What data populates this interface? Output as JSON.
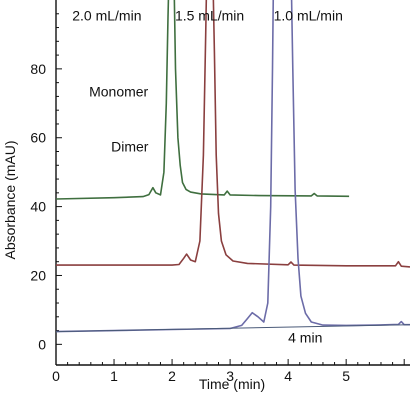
{
  "chart_data": {
    "type": "line",
    "title": "",
    "xlabel": "Time (min)",
    "ylabel": "Absorbance (mAU)",
    "xlim": [
      0,
      6.1
    ],
    "ylim": [
      -6,
      100
    ],
    "x_ticks": [
      0,
      1,
      2,
      3,
      4,
      5
    ],
    "y_ticks": [
      0,
      20,
      40,
      60,
      80
    ],
    "grid": false,
    "legend": "none",
    "series": [
      {
        "name": "2.0 mL/min",
        "color": "#3f6f3f",
        "points": [
          [
            0,
            42.2
          ],
          [
            1.0,
            42.6
          ],
          [
            1.5,
            42.9
          ],
          [
            1.6,
            43.5
          ],
          [
            1.67,
            45.5
          ],
          [
            1.72,
            44.0
          ],
          [
            1.8,
            43.4
          ],
          [
            1.86,
            50
          ],
          [
            1.9,
            70
          ],
          [
            1.93,
            95
          ],
          [
            1.95,
            110
          ],
          [
            2.03,
            110
          ],
          [
            2.06,
            80
          ],
          [
            2.1,
            60
          ],
          [
            2.14,
            52
          ],
          [
            2.18,
            47
          ],
          [
            2.24,
            45
          ],
          [
            2.32,
            44.2
          ],
          [
            2.5,
            43.7
          ],
          [
            2.9,
            43.4
          ],
          [
            2.95,
            44.5
          ],
          [
            3.0,
            43.4
          ],
          [
            3.5,
            43.2
          ],
          [
            4.4,
            43.1
          ],
          [
            4.45,
            43.8
          ],
          [
            4.5,
            43.1
          ],
          [
            5.05,
            43.0
          ]
        ]
      },
      {
        "name": "1.5 mL/min",
        "color": "#8a3f3f",
        "points": [
          [
            0,
            23.0
          ],
          [
            1.0,
            23.0
          ],
          [
            2.0,
            23.0
          ],
          [
            2.12,
            23.2
          ],
          [
            2.2,
            25.0
          ],
          [
            2.25,
            26.2
          ],
          [
            2.32,
            24.5
          ],
          [
            2.4,
            24.0
          ],
          [
            2.48,
            30
          ],
          [
            2.54,
            55
          ],
          [
            2.58,
            90
          ],
          [
            2.6,
            110
          ],
          [
            2.7,
            110
          ],
          [
            2.73,
            85
          ],
          [
            2.76,
            55
          ],
          [
            2.8,
            38
          ],
          [
            2.85,
            30
          ],
          [
            2.93,
            26
          ],
          [
            3.05,
            24.2
          ],
          [
            3.3,
            23.5
          ],
          [
            4.0,
            23.1
          ],
          [
            4.05,
            23.9
          ],
          [
            4.1,
            23.0
          ],
          [
            5.0,
            22.8
          ],
          [
            5.85,
            22.8
          ],
          [
            5.9,
            24.0
          ],
          [
            5.95,
            22.7
          ],
          [
            6.1,
            22.5
          ]
        ]
      },
      {
        "name": "1.0 mL/min",
        "color": "#6c6ca8",
        "points": [
          [
            0,
            3.7
          ],
          [
            1.0,
            4.0
          ],
          [
            2.0,
            4.3
          ],
          [
            3.0,
            4.6
          ],
          [
            3.2,
            5.5
          ],
          [
            3.3,
            7.5
          ],
          [
            3.38,
            9.2
          ],
          [
            3.48,
            8.0
          ],
          [
            3.58,
            6.5
          ],
          [
            3.65,
            12
          ],
          [
            3.7,
            40
          ],
          [
            3.73,
            80
          ],
          [
            3.75,
            110
          ],
          [
            4.05,
            110
          ],
          [
            4.08,
            80
          ],
          [
            4.12,
            45
          ],
          [
            4.17,
            25
          ],
          [
            4.22,
            14
          ],
          [
            4.3,
            9
          ],
          [
            4.4,
            6.5
          ],
          [
            4.6,
            5.6
          ],
          [
            5.0,
            5.5
          ],
          [
            5.5,
            5.6
          ],
          [
            5.9,
            5.8
          ],
          [
            5.95,
            6.6
          ],
          [
            6.0,
            5.7
          ],
          [
            6.1,
            5.7
          ]
        ]
      },
      {
        "name": "baseline",
        "color": "#4a5a78",
        "points": [
          [
            0,
            3.7
          ],
          [
            6.1,
            5.7
          ]
        ]
      }
    ],
    "annotations": [
      {
        "text": "2.0 mL/min",
        "x": 0.28,
        "y": 94.0
      },
      {
        "text": "1.5 mL/min",
        "x": 2.05,
        "y": 94.0
      },
      {
        "text": "1.0 mL/min",
        "x": 3.75,
        "y": 94.0
      },
      {
        "text": "Monomer",
        "x": 0.57,
        "y": 72.0
      },
      {
        "text": "Dimer",
        "x": 0.95,
        "y": 56.0
      },
      {
        "text": "4 min",
        "x": 4.0,
        "y": 0.5
      }
    ]
  }
}
